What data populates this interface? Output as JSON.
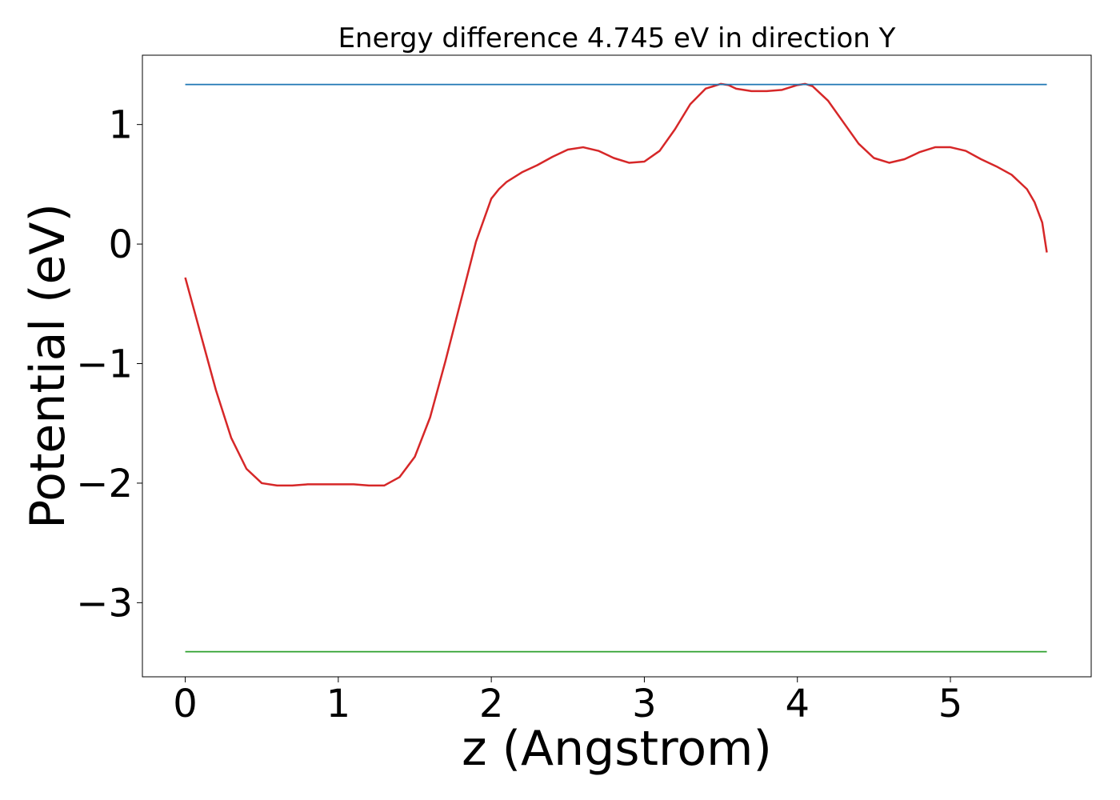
{
  "chart_data": {
    "type": "line",
    "title": "Energy difference 4.745 eV in direction Y",
    "xlabel": "z (Angstrom)",
    "ylabel": "Potential (eV)",
    "xlim": [
      -0.28,
      5.92
    ],
    "ylim": [
      -3.62,
      1.58
    ],
    "xticks": [
      0,
      1,
      2,
      3,
      4,
      5
    ],
    "xtick_labels": [
      "0",
      "1",
      "2",
      "3",
      "4",
      "5"
    ],
    "yticks": [
      1,
      0,
      -1,
      -2,
      -3
    ],
    "ytick_labels": [
      "1",
      "0",
      "−1",
      "−2",
      "−3"
    ],
    "grid": false,
    "legend": "none",
    "series": [
      {
        "color": "#d62728",
        "x": [
          0,
          0.1,
          0.2,
          0.3,
          0.4,
          0.5,
          0.6,
          0.7,
          0.8,
          0.9,
          1.0,
          1.1,
          1.2,
          1.3,
          1.4,
          1.5,
          1.6,
          1.7,
          1.8,
          1.9,
          2.0,
          2.05,
          2.1,
          2.2,
          2.3,
          2.4,
          2.5,
          2.6,
          2.7,
          2.8,
          2.9,
          3.0,
          3.1,
          3.2,
          3.3,
          3.4,
          3.5,
          3.55,
          3.6,
          3.7,
          3.8,
          3.9,
          4.0,
          4.05,
          4.1,
          4.2,
          4.3,
          4.4,
          4.5,
          4.6,
          4.7,
          4.8,
          4.9,
          5.0,
          5.1,
          5.2,
          5.3,
          5.4,
          5.5,
          5.55,
          5.6,
          5.63
        ],
        "y": [
          -0.28,
          -0.75,
          -1.22,
          -1.62,
          -1.88,
          -2.0,
          -2.02,
          -2.02,
          -2.01,
          -2.01,
          -2.01,
          -2.01,
          -2.02,
          -2.02,
          -1.95,
          -1.78,
          -1.45,
          -0.98,
          -0.48,
          0.02,
          0.38,
          0.46,
          0.52,
          0.6,
          0.66,
          0.73,
          0.79,
          0.81,
          0.78,
          0.72,
          0.68,
          0.69,
          0.78,
          0.96,
          1.17,
          1.3,
          1.34,
          1.33,
          1.3,
          1.28,
          1.28,
          1.29,
          1.33,
          1.34,
          1.32,
          1.2,
          1.02,
          0.84,
          0.72,
          0.68,
          0.71,
          0.77,
          0.81,
          0.81,
          0.78,
          0.71,
          0.65,
          0.58,
          0.46,
          0.35,
          0.18,
          -0.07
        ]
      },
      {
        "color": "#1f77b4",
        "x": [
          0,
          5.63
        ],
        "y": [
          1.335,
          1.335
        ]
      },
      {
        "color": "#2ca02c",
        "x": [
          0,
          5.63
        ],
        "y": [
          -3.41,
          -3.41
        ]
      }
    ]
  }
}
